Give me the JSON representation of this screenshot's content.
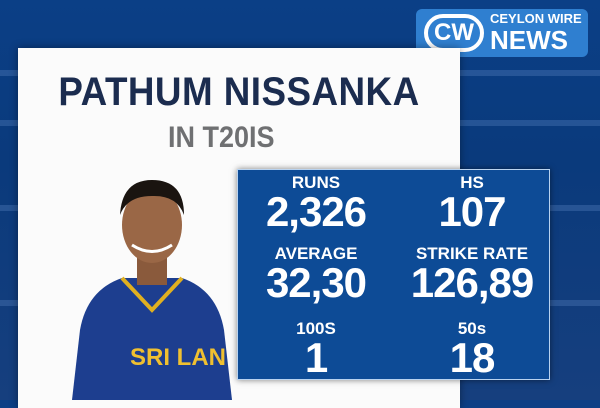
{
  "brand": {
    "logo_mark": "CW",
    "line1": "CEYLON WIRE",
    "line2": "NEWS",
    "color": "#2f7fd0"
  },
  "headline": {
    "name": "PATHUM NISSANKA",
    "format": "IN T20IS"
  },
  "player_jersey_text": "SRI LAN",
  "stats_box_color": "#0d4b96",
  "stats": [
    {
      "label": "RUNS",
      "value": "2,326"
    },
    {
      "label": "HS",
      "value": "107"
    },
    {
      "label": "AVERAGE",
      "value": "32,30"
    },
    {
      "label": "STRIKE RATE",
      "value": "126,89"
    },
    {
      "label": "100S",
      "value": "1"
    },
    {
      "label": "50s",
      "value": "18"
    }
  ]
}
